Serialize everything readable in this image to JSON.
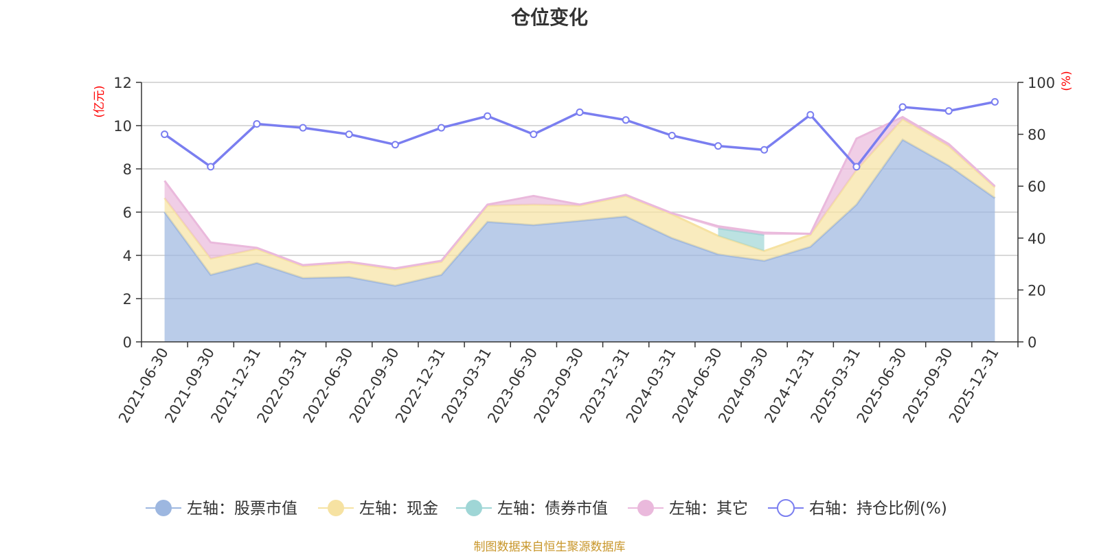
{
  "title": "仓位变化",
  "source": "制图数据来自恒生聚源数据库",
  "chart_data": {
    "type": "area",
    "categories": [
      "2021-06-30",
      "2021-09-30",
      "2021-12-31",
      "2022-03-31",
      "2022-06-30",
      "2022-09-30",
      "2022-12-31",
      "2023-03-31",
      "2023-06-30",
      "2023-09-30",
      "2023-12-31",
      "2024-03-31",
      "2024-06-30",
      "2024-09-30",
      "2024-12-31",
      "2025-03-31",
      "2025-06-30",
      "2025-09-30",
      "2025-12-31"
    ],
    "left_axis": {
      "label": "(亿元)",
      "ylim": [
        0,
        12
      ],
      "ticks": [
        "0",
        "2",
        "4",
        "6",
        "8",
        "10",
        "12"
      ]
    },
    "right_axis": {
      "label": "(%)",
      "ylim": [
        0,
        100
      ],
      "ticks": [
        "0",
        "20",
        "40",
        "60",
        "80",
        "100"
      ]
    },
    "stacked": true,
    "series": [
      {
        "name": "左轴：股票市值",
        "axis": "left",
        "color": "#9db7e0",
        "values": [
          6.0,
          3.1,
          3.65,
          2.95,
          3.0,
          2.6,
          3.1,
          5.55,
          5.4,
          5.6,
          5.8,
          4.8,
          4.05,
          3.75,
          4.4,
          6.35,
          9.35,
          8.15,
          6.65
        ]
      },
      {
        "name": "左轴：现金",
        "axis": "left",
        "color": "#f6e2a2",
        "values": [
          0.65,
          0.75,
          0.65,
          0.55,
          0.65,
          0.75,
          0.6,
          0.75,
          0.95,
          0.7,
          0.95,
          1.1,
          0.85,
          0.45,
          0.55,
          1.6,
          0.95,
          0.9,
          0.5
        ]
      },
      {
        "name": "左轴：债券市值",
        "axis": "left",
        "color": "#9fd6d6",
        "values": [
          0,
          0,
          0,
          0,
          0,
          0,
          0,
          0,
          0,
          0,
          0,
          0,
          0.35,
          0.75,
          0,
          0,
          0,
          0,
          0
        ]
      },
      {
        "name": "左轴：其它",
        "axis": "left",
        "color": "#eab9dc",
        "values": [
          0.8,
          0.75,
          0.05,
          0.05,
          0.05,
          0.05,
          0.05,
          0.05,
          0.4,
          0.05,
          0.05,
          0.05,
          0.1,
          0.1,
          0.05,
          1.45,
          0.1,
          0.1,
          0.05
        ]
      },
      {
        "name": "右轴：持仓比例(%)",
        "axis": "right",
        "color": "#7a7ef0",
        "type": "line",
        "values": [
          80,
          67.5,
          84,
          82.5,
          80,
          76,
          82.5,
          87,
          80,
          88.5,
          85.5,
          79.5,
          75.5,
          74,
          87.5,
          67.5,
          90.5,
          89,
          92.5
        ]
      }
    ],
    "legend_position": "bottom-center"
  }
}
